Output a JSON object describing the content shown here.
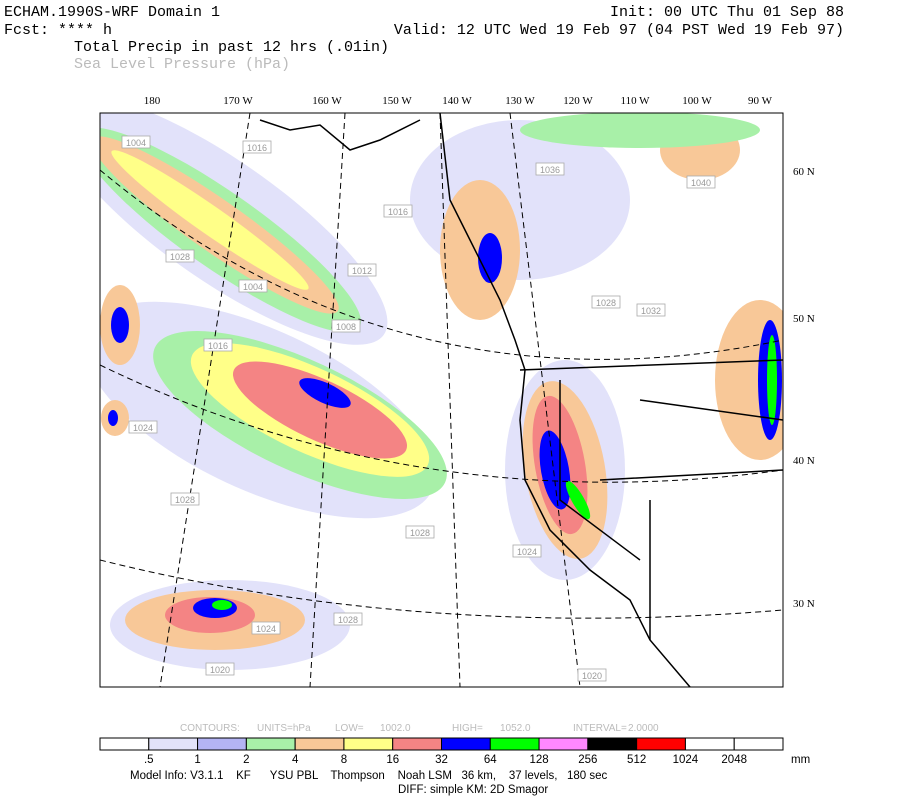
{
  "header": {
    "title": "ECHAM.1990S-WRF Domain 1",
    "init": "Init: 00 UTC Thu 01 Sep 88",
    "fcst": "Fcst: **** h",
    "valid": "Valid: 12 UTC Wed 19 Feb 97 (04 PST Wed 19 Feb 97)",
    "field1": "Total Precip in past 12 hrs (.01in)",
    "field2": "Sea Level Pressure (hPa)"
  },
  "map": {
    "lon_labels": [
      "180",
      "170 W",
      "160 W",
      "150 W",
      "140 W",
      "130 W",
      "120 W",
      "110 W",
      "100 W",
      "90 W"
    ],
    "lat_labels": [
      "60 N",
      "50 N",
      "40 N",
      "30 N"
    ],
    "contour_labels": [
      "1004",
      "1016",
      "1016",
      "1012",
      "1004",
      "1008",
      "1016",
      "1028",
      "1024",
      "1028",
      "1028",
      "1024",
      "1028",
      "1032",
      "1040",
      "1036",
      "1024",
      "1020",
      "1028",
      "1020"
    ]
  },
  "colorbar": {
    "contour_info": [
      "CONTOURS:",
      "UNITS=hPa",
      "LOW=",
      "1002.0",
      "HIGH=",
      "1052.0",
      "INTERVAL=",
      "2.0000"
    ],
    "colors": [
      "#ffffff",
      "#e2e2fa",
      "#b4b4f4",
      "#a8f0a8",
      "#f8c898",
      "#ffff88",
      "#f48484",
      "#0000ff",
      "#00ff00",
      "#ff88ff",
      "#000000",
      "#ff0000",
      "#ffffff",
      "#ffffff"
    ],
    "levels": [
      ".5",
      "1",
      "2",
      "4",
      "8",
      "16",
      "32",
      "64",
      "128",
      "256",
      "512",
      "1024",
      "2048"
    ],
    "unit": "mm"
  },
  "footer": {
    "line1": "Model Info: V3.1.1    KF      YSU PBL    Thompson    Noah LSM   36 km,    37 levels,   180 sec",
    "line2": "DIFF: simple KM: 2D Smagor"
  }
}
